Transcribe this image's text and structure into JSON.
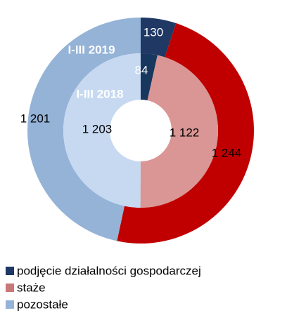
{
  "chart_data": {
    "type": "donut",
    "categories": [
      "podjęcie działalności gospodarczej",
      "staże",
      "pozostałe"
    ],
    "legend_colors": [
      "#1f3864",
      "#c87878",
      "#95b3d7"
    ],
    "series": [
      {
        "name": "I-III 2019",
        "values": [
          130,
          1244,
          1201
        ],
        "value_labels": [
          "130",
          "1 244",
          "1 201"
        ],
        "colors": [
          "#1f3864",
          "#c00000",
          "#95b3d7"
        ]
      },
      {
        "name": "I-III 2018",
        "values": [
          84,
          1122,
          1203
        ],
        "value_labels": [
          "84",
          "1 122",
          "1 203"
        ],
        "colors": [
          "#17375e",
          "#d99694",
          "#c6d9f1"
        ]
      }
    ]
  }
}
